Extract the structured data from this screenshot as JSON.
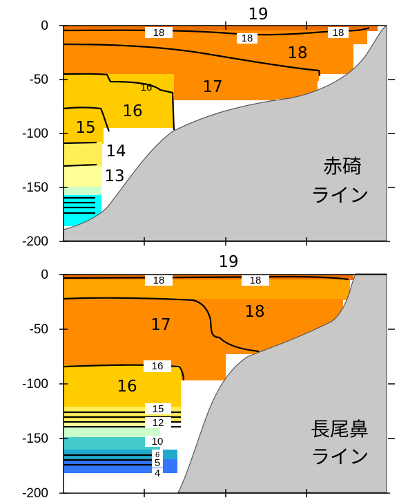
{
  "chart_data": [
    {
      "type": "heatmap",
      "line_name": [
        "赤碕",
        "ライン"
      ],
      "ylim": [
        -200,
        0
      ],
      "y_ticks": [
        "0",
        "-50",
        "-100",
        "-150",
        "-200"
      ],
      "contour_labels": [
        "19",
        "18",
        "18",
        "18",
        "17",
        "16",
        "16",
        "15",
        "14",
        "13"
      ],
      "colors": {
        "orange_dark": "#ee6f00",
        "orange": "#ff8c00",
        "light_orange": "#ffa500",
        "yellow_orange": "#ffcc00",
        "yellow": "#ffee55",
        "light_yellow": "#ffff99",
        "cyan": "#00ffff",
        "seabed": "#c8c8c8"
      }
    },
    {
      "type": "heatmap",
      "line_name": [
        "長尾鼻",
        "ライン"
      ],
      "ylim": [
        -200,
        0
      ],
      "y_ticks": [
        "0",
        "-50",
        "-100",
        "-150",
        "-200"
      ],
      "contour_labels": [
        "19",
        "18",
        "18",
        "17",
        "18",
        "16",
        "16",
        "15",
        "12",
        "10",
        "6",
        "5",
        "4"
      ],
      "colors": {
        "orange_dark": "#ee6f00",
        "orange": "#ff8c00",
        "light_orange": "#ffa500",
        "yellow_orange": "#ffcc00",
        "yellow": "#ffee55",
        "cyan": "#00ffff",
        "teal": "#44cccc",
        "blue": "#3377ff",
        "seabed": "#c8c8c8"
      }
    }
  ]
}
